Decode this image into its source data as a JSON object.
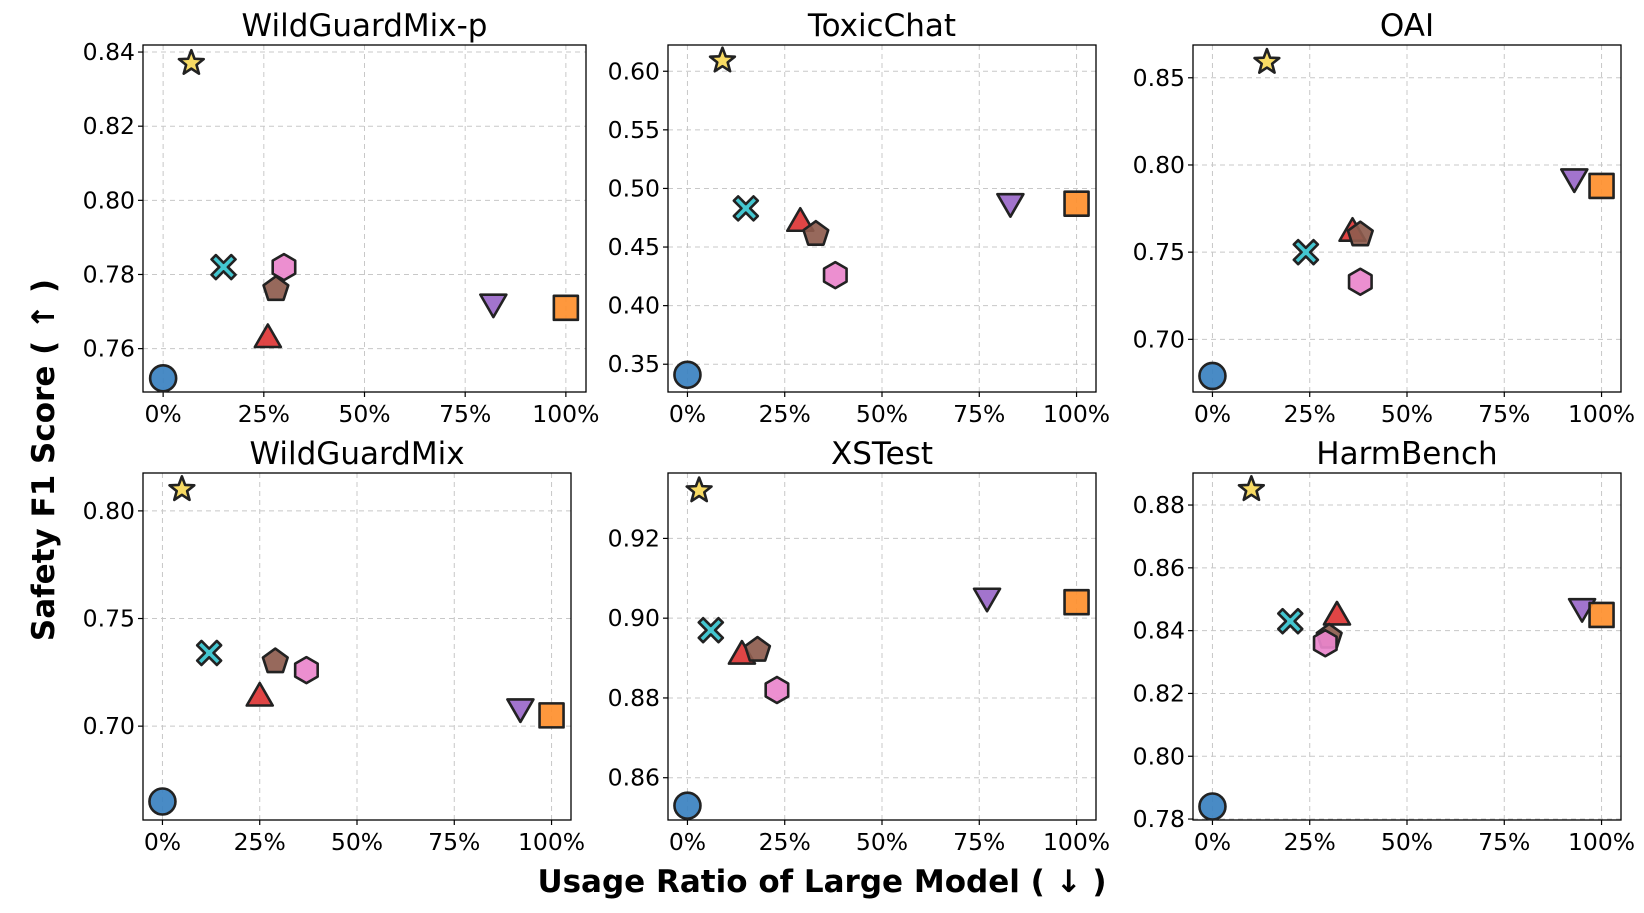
{
  "chart_data": {
    "type": "scatter",
    "xlabel": "Usage Ratio of Large Model ( ↓ )",
    "ylabel": "Safety F1 Score ( ↑ )",
    "x_tick_labels": [
      "0%",
      "25%",
      "50%",
      "75%",
      "100%"
    ],
    "grid": true,
    "legend": "none",
    "marker_styles": [
      {
        "marker": "circle",
        "color": "#3a81c0"
      },
      {
        "marker": "star",
        "color": "#f7d857"
      },
      {
        "marker": "x",
        "color": "#33c1cc"
      },
      {
        "marker": "triangle-up",
        "color": "#dd3535"
      },
      {
        "marker": "pentagon",
        "color": "#8e5c4e"
      },
      {
        "marker": "hexagon",
        "color": "#ea85cc"
      },
      {
        "marker": "triangle-down",
        "color": "#9a68c9"
      },
      {
        "marker": "square",
        "color": "#fe8f2d"
      }
    ],
    "panels": [
      {
        "title": "WildGuardMix-p",
        "xlim": [
          -0.05,
          1.05
        ],
        "ylim": [
          0.7483,
          0.8419
        ],
        "yticks": [
          0.76,
          0.78,
          0.8,
          0.82,
          0.84
        ],
        "ytick_labels": [
          "0.76",
          "0.78",
          "0.80",
          "0.82",
          "0.84"
        ],
        "points": [
          {
            "x": 0.0,
            "y": 0.752
          },
          {
            "x": 0.07,
            "y": 0.837
          },
          {
            "x": 0.15,
            "y": 0.782
          },
          {
            "x": 0.26,
            "y": 0.763
          },
          {
            "x": 0.28,
            "y": 0.776
          },
          {
            "x": 0.3,
            "y": 0.782
          },
          {
            "x": 0.82,
            "y": 0.772
          },
          {
            "x": 1.0,
            "y": 0.771
          }
        ]
      },
      {
        "title": "ToxicChat",
        "xlim": [
          -0.05,
          1.05
        ],
        "ylim": [
          0.3263,
          0.6224
        ],
        "yticks": [
          0.35,
          0.4,
          0.45,
          0.5,
          0.55,
          0.6
        ],
        "ytick_labels": [
          "0.35",
          "0.40",
          "0.45",
          "0.50",
          "0.55",
          "0.60"
        ],
        "points": [
          {
            "x": 0.0,
            "y": 0.341
          },
          {
            "x": 0.09,
            "y": 0.609
          },
          {
            "x": 0.15,
            "y": 0.483
          },
          {
            "x": 0.29,
            "y": 0.472
          },
          {
            "x": 0.33,
            "y": 0.461
          },
          {
            "x": 0.38,
            "y": 0.426
          },
          {
            "x": 0.83,
            "y": 0.487
          },
          {
            "x": 1.0,
            "y": 0.487
          }
        ]
      },
      {
        "title": "OAI",
        "xlim": [
          -0.05,
          1.05
        ],
        "ylim": [
          0.6698,
          0.8688
        ],
        "yticks": [
          0.7,
          0.75,
          0.8,
          0.85
        ],
        "ytick_labels": [
          "0.70",
          "0.75",
          "0.80",
          "0.85"
        ],
        "points": [
          {
            "x": 0.0,
            "y": 0.679
          },
          {
            "x": 0.14,
            "y": 0.859
          },
          {
            "x": 0.24,
            "y": 0.75
          },
          {
            "x": 0.36,
            "y": 0.762
          },
          {
            "x": 0.38,
            "y": 0.76
          },
          {
            "x": 0.38,
            "y": 0.733
          },
          {
            "x": 0.93,
            "y": 0.792
          },
          {
            "x": 1.0,
            "y": 0.788
          }
        ]
      },
      {
        "title": "WildGuardMix",
        "xlim": [
          -0.05,
          1.05
        ],
        "ylim": [
          0.6564,
          0.8176
        ],
        "yticks": [
          0.7,
          0.75,
          0.8
        ],
        "ytick_labels": [
          "0.70",
          "0.75",
          "0.80"
        ],
        "points": [
          {
            "x": 0.0,
            "y": 0.665
          },
          {
            "x": 0.05,
            "y": 0.81
          },
          {
            "x": 0.12,
            "y": 0.734
          },
          {
            "x": 0.25,
            "y": 0.714
          },
          {
            "x": 0.29,
            "y": 0.73
          },
          {
            "x": 0.37,
            "y": 0.726
          },
          {
            "x": 0.92,
            "y": 0.708
          },
          {
            "x": 1.0,
            "y": 0.705
          }
        ]
      },
      {
        "title": "XSTest",
        "xlim": [
          -0.05,
          1.05
        ],
        "ylim": [
          0.8494,
          0.9364
        ],
        "yticks": [
          0.86,
          0.88,
          0.9,
          0.92
        ],
        "ytick_labels": [
          "0.86",
          "0.88",
          "0.90",
          "0.92"
        ],
        "points": [
          {
            "x": 0.0,
            "y": 0.853
          },
          {
            "x": 0.03,
            "y": 0.932
          },
          {
            "x": 0.06,
            "y": 0.897
          },
          {
            "x": 0.14,
            "y": 0.891
          },
          {
            "x": 0.18,
            "y": 0.892
          },
          {
            "x": 0.23,
            "y": 0.882
          },
          {
            "x": 0.77,
            "y": 0.905
          },
          {
            "x": 1.0,
            "y": 0.904
          }
        ]
      },
      {
        "title": "HarmBench",
        "xlim": [
          -0.05,
          1.05
        ],
        "ylim": [
          0.7797,
          0.8902
        ],
        "yticks": [
          0.78,
          0.8,
          0.82,
          0.84,
          0.86,
          0.88
        ],
        "ytick_labels": [
          "0.78",
          "0.80",
          "0.82",
          "0.84",
          "0.86",
          "0.88"
        ],
        "points": [
          {
            "x": 0.0,
            "y": 0.784
          },
          {
            "x": 0.1,
            "y": 0.885
          },
          {
            "x": 0.2,
            "y": 0.843
          },
          {
            "x": 0.32,
            "y": 0.845
          },
          {
            "x": 0.3,
            "y": 0.838
          },
          {
            "x": 0.29,
            "y": 0.836
          },
          {
            "x": 0.95,
            "y": 0.847
          },
          {
            "x": 1.0,
            "y": 0.845
          }
        ]
      }
    ]
  }
}
